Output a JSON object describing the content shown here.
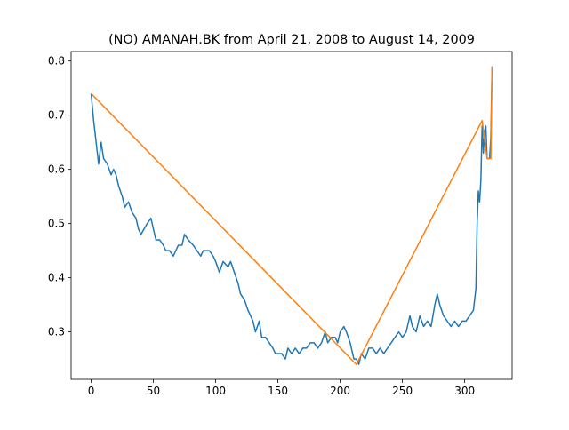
{
  "chart_data": {
    "type": "line",
    "title": "(NO) AMANAH.BK from April 21, 2008 to August 14, 2009",
    "series": [
      {
        "color": "#1f77b4",
        "x": [
          0,
          2,
          4,
          6,
          8,
          10,
          13,
          16,
          18,
          20,
          22,
          25,
          27,
          30,
          33,
          36,
          38,
          40,
          45,
          48,
          50,
          52,
          55,
          58,
          60,
          63,
          66,
          70,
          73,
          75,
          78,
          82,
          85,
          88,
          90,
          95,
          98,
          100,
          103,
          106,
          110,
          112,
          115,
          118,
          120,
          123,
          126,
          128,
          130,
          132,
          135,
          137,
          140,
          143,
          146,
          148,
          150,
          153,
          156,
          158,
          161,
          164,
          167,
          170,
          173,
          176,
          179,
          182,
          185,
          188,
          190,
          193,
          196,
          198,
          200,
          203,
          205,
          208,
          211,
          213,
          215,
          217,
          220,
          223,
          226,
          229,
          232,
          235,
          238,
          241,
          244,
          247,
          250,
          253,
          256,
          258,
          261,
          264,
          267,
          270,
          273,
          276,
          278,
          280,
          283,
          286,
          289,
          292,
          295,
          298,
          301,
          304,
          307,
          309,
          310,
          311,
          312,
          313,
          314,
          315,
          316,
          317,
          318,
          320,
          321,
          322
        ],
        "values": [
          0.74,
          0.69,
          0.65,
          0.61,
          0.65,
          0.62,
          0.61,
          0.59,
          0.6,
          0.59,
          0.57,
          0.55,
          0.53,
          0.54,
          0.52,
          0.51,
          0.49,
          0.48,
          0.5,
          0.51,
          0.49,
          0.47,
          0.47,
          0.46,
          0.45,
          0.45,
          0.44,
          0.46,
          0.46,
          0.48,
          0.47,
          0.46,
          0.45,
          0.44,
          0.45,
          0.45,
          0.44,
          0.43,
          0.41,
          0.43,
          0.42,
          0.43,
          0.41,
          0.39,
          0.37,
          0.36,
          0.34,
          0.33,
          0.32,
          0.3,
          0.32,
          0.29,
          0.29,
          0.28,
          0.27,
          0.26,
          0.26,
          0.26,
          0.25,
          0.27,
          0.26,
          0.27,
          0.26,
          0.27,
          0.27,
          0.28,
          0.28,
          0.27,
          0.28,
          0.3,
          0.28,
          0.29,
          0.29,
          0.28,
          0.3,
          0.31,
          0.3,
          0.28,
          0.25,
          0.25,
          0.24,
          0.26,
          0.25,
          0.27,
          0.27,
          0.26,
          0.27,
          0.26,
          0.27,
          0.28,
          0.29,
          0.3,
          0.29,
          0.3,
          0.33,
          0.31,
          0.3,
          0.33,
          0.31,
          0.32,
          0.31,
          0.35,
          0.37,
          0.35,
          0.33,
          0.32,
          0.31,
          0.32,
          0.31,
          0.32,
          0.32,
          0.33,
          0.34,
          0.38,
          0.5,
          0.56,
          0.54,
          0.58,
          0.68,
          0.63,
          0.67,
          0.68,
          0.62,
          0.62,
          0.66,
          0.79
        ]
      },
      {
        "color": "#ff7f0e",
        "x": [
          0,
          213,
          314,
          318,
          321,
          322
        ],
        "values": [
          0.74,
          0.24,
          0.69,
          0.62,
          0.62,
          0.79
        ]
      }
    ],
    "xlim": [
      -16.1,
      338.1
    ],
    "xticks": [
      0,
      50,
      100,
      150,
      200,
      250,
      300
    ],
    "ylim": [
      0.2125,
      0.8175
    ],
    "yticks": [
      0.3,
      0.4,
      0.5,
      0.6,
      0.7,
      0.8
    ]
  }
}
